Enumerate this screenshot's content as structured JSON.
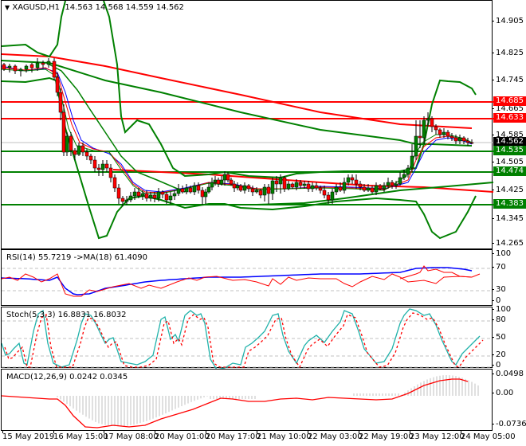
{
  "header": {
    "symbol": "XAGUSD,H1",
    "ohlc": "14.563 14.568 14.559 14.562"
  },
  "colors": {
    "bull": "#008000",
    "bear": "#ff0000",
    "resistance": "#ff0000",
    "support": "#008000",
    "bid_line": "#c0c0c0",
    "rsi": "#ff0000",
    "rsi_ma": "#0000ff",
    "stoch_main": "#20b2aa",
    "stoch_signal": "#ff0000",
    "macd_hist": "#c0c0c0",
    "macd_signal": "#ff0000"
  },
  "price_axis": {
    "ticks": [
      "14.905",
      "14.825",
      "14.745",
      "14.665",
      "14.585",
      "14.505",
      "14.425",
      "14.345",
      "14.265"
    ],
    "tags": [
      {
        "label": "14.685",
        "color": "#ff0000"
      },
      {
        "label": "14.633",
        "color": "#ff0000"
      },
      {
        "label": "14.562",
        "color": "#000000"
      },
      {
        "label": "14.535",
        "color": "#008000"
      },
      {
        "label": "14.474",
        "color": "#008000"
      },
      {
        "label": "14.383",
        "color": "#008000"
      }
    ]
  },
  "rsi": {
    "title": "RSI(14) 55.7219  ->MA(18) 61.4090",
    "ticks": [
      "100",
      "70",
      "30",
      "0"
    ]
  },
  "stoch": {
    "title": "Stoch(5,3,3) 16.8831 16.8032",
    "ticks": [
      "100",
      "80",
      "50",
      "20",
      "0"
    ]
  },
  "macd": {
    "title": "MACD(12,26,9) 0.0242 0.0345",
    "ticks": [
      "0.0498",
      "0.00",
      "-0.0736"
    ]
  },
  "time_axis": {
    "labels": [
      "15 May 2019",
      "16 May 15:00",
      "17 May 08:00",
      "20 May 01:00",
      "20 May 17:00",
      "21 May 10:00",
      "22 May 03:00",
      "22 May 19:00",
      "23 May 12:00",
      "24 May 05:00"
    ]
  },
  "chart_data": {
    "type": "candlestick",
    "title": "XAGUSD,H1",
    "last_ohlc": {
      "open": 14.563,
      "high": 14.568,
      "low": 14.559,
      "close": 14.562
    },
    "ylim": [
      14.265,
      14.905
    ],
    "horizontal_levels": {
      "resistance": [
        14.685,
        14.633
      ],
      "support": [
        14.535,
        14.474,
        14.383
      ],
      "bid": 14.562
    },
    "x_labels": [
      "15 May 2019",
      "16 May 15:00",
      "17 May 08:00",
      "20 May 01:00",
      "20 May 17:00",
      "21 May 10:00",
      "22 May 03:00",
      "22 May 19:00",
      "23 May 12:00",
      "24 May 05:00"
    ],
    "close_approx": [
      14.78,
      14.77,
      14.76,
      14.78,
      14.79,
      14.8,
      14.78,
      14.7,
      14.55,
      14.53,
      14.52,
      14.51,
      14.5,
      14.45,
      14.42,
      14.4,
      14.41,
      14.43,
      14.42,
      14.39,
      14.4,
      14.43,
      14.46,
      14.47,
      14.45,
      14.44,
      14.43,
      14.42,
      14.45,
      14.46,
      14.44,
      14.45,
      14.44,
      14.43,
      14.42,
      14.41,
      14.45,
      14.47,
      14.46,
      14.45,
      14.44,
      14.42,
      14.41,
      14.43,
      14.45,
      14.52,
      14.6,
      14.62,
      14.6,
      14.58,
      14.59,
      14.57,
      14.56
    ],
    "indicators": {
      "rsi": {
        "period": 14,
        "value": 55.7219,
        "ma_period": 18,
        "ma_value": 61.409,
        "levels": [
          70,
          30
        ],
        "ylim": [
          0,
          100
        ]
      },
      "stochastic": {
        "params": [
          5,
          3,
          3
        ],
        "main": 16.8831,
        "signal": 16.8032,
        "levels": [
          80,
          50,
          20
        ],
        "ylim": [
          0,
          100
        ]
      },
      "macd": {
        "params": [
          12,
          26,
          9
        ],
        "main": 0.0242,
        "signal": 0.0345,
        "ylim": [
          -0.0736,
          0.0498
        ]
      }
    }
  }
}
